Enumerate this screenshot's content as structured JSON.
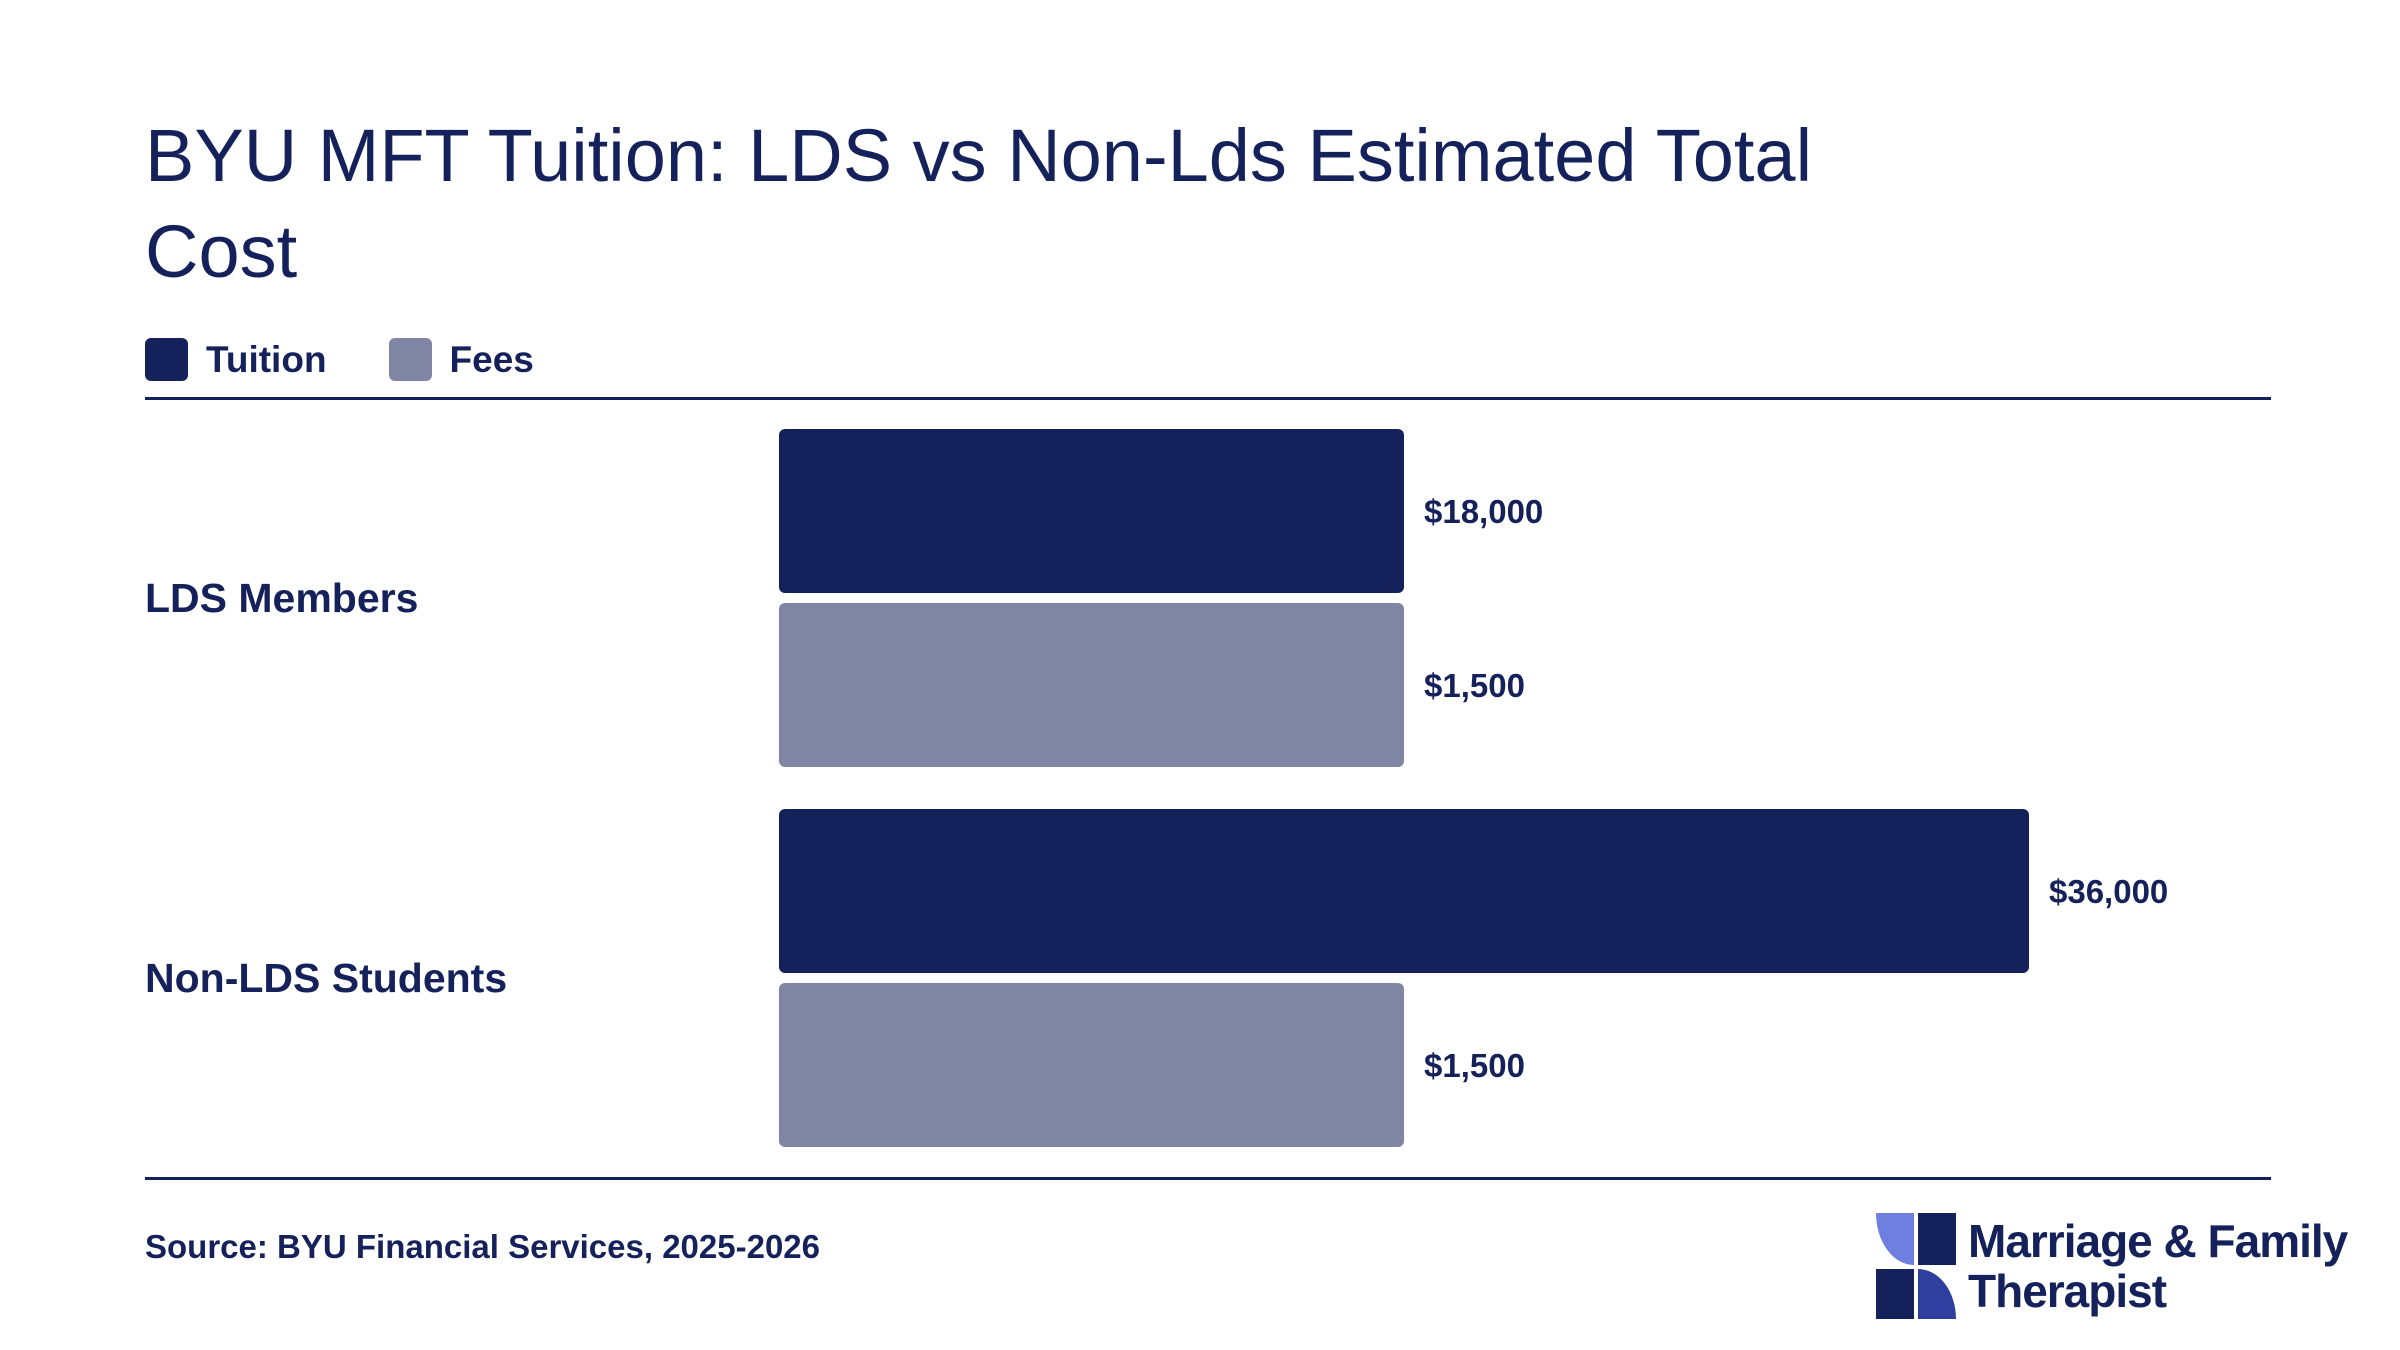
{
  "title": "BYU MFT Tuition: LDS vs Non-Lds Estimated Total Cost",
  "legend": [
    {
      "label": "Tuition",
      "color": "#15215a"
    },
    {
      "label": "Fees",
      "color": "#7f85a2"
    }
  ],
  "source": "Source: BYU Financial Services, 2025-2026",
  "brand": {
    "line1": "Marriage & Family",
    "line2": "Therapist",
    "icon": "pinwheel-logo-icon"
  },
  "chart_data": {
    "type": "bar",
    "orientation": "horizontal",
    "categories": [
      "LDS Members",
      "Non-LDS Students"
    ],
    "series": [
      {
        "name": "Tuition",
        "values": [
          18000,
          36000
        ],
        "labels": [
          "$18,000",
          "$36,000"
        ],
        "color": "#15215a"
      },
      {
        "name": "Fees",
        "values": [
          1500,
          1500
        ],
        "labels": [
          "$1,500",
          "$1,500"
        ],
        "color": "#7f85a2"
      }
    ],
    "legend_position": "top-left",
    "grid": false
  }
}
